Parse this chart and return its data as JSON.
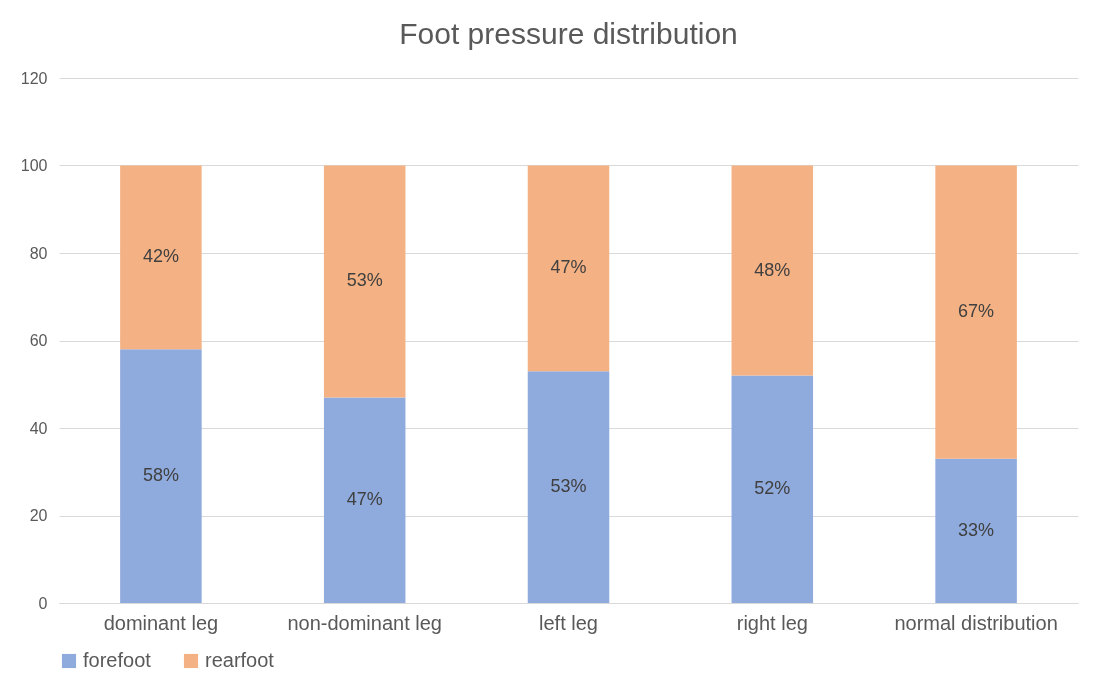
{
  "chart_data": {
    "type": "bar",
    "title": "Foot pressure distribution",
    "categories": [
      "dominant leg",
      "non-dominant leg",
      "left leg",
      "right leg",
      "normal distribution"
    ],
    "stacked": true,
    "series": [
      {
        "name": "forefoot",
        "color": "#8faadc",
        "values": [
          58,
          47,
          53,
          52,
          33
        ],
        "value_labels": [
          "58%",
          "47%",
          "53%",
          "52%",
          "33%"
        ]
      },
      {
        "name": "rearfoot",
        "color": "#f4b183",
        "values": [
          42,
          53,
          47,
          48,
          67
        ],
        "value_labels": [
          "42%",
          "53%",
          "47%",
          "48%",
          "67%"
        ]
      }
    ],
    "ylim": [
      0,
      120
    ],
    "yticks": [
      0,
      20,
      40,
      60,
      80,
      100,
      120
    ],
    "grid": "y",
    "legend": "bottom"
  }
}
